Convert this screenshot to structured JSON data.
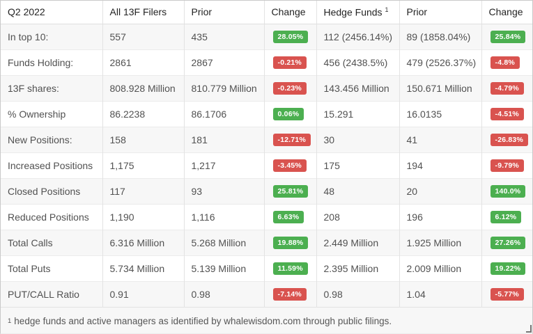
{
  "colors": {
    "positive": "#4caf50",
    "negative": "#d9534f",
    "stripe": "#f7f7f7",
    "border": "#e3e3e3"
  },
  "table": {
    "columns": [
      {
        "id": "label",
        "label": "Q2 2022",
        "type": "text"
      },
      {
        "id": "all",
        "label": "All 13F Filers",
        "type": "text"
      },
      {
        "id": "all_prior",
        "label": "Prior",
        "type": "text"
      },
      {
        "id": "all_chg",
        "label": "Change",
        "type": "badge"
      },
      {
        "id": "hf",
        "label": "Hedge Funds",
        "sup": "1",
        "type": "text"
      },
      {
        "id": "hf_prior",
        "label": "Prior",
        "type": "text"
      },
      {
        "id": "hf_chg",
        "label": "Change",
        "type": "badge"
      }
    ],
    "rows": [
      {
        "label": "In top 10:",
        "all": "557",
        "all_prior": "435",
        "all_chg": {
          "text": "28.05%",
          "positive": true
        },
        "hf": "112 (2456.14%)",
        "hf_prior": "89 (1858.04%)",
        "hf_chg": {
          "text": "25.84%",
          "positive": true
        }
      },
      {
        "label": "Funds Holding:",
        "all": "2861",
        "all_prior": "2867",
        "all_chg": {
          "text": "-0.21%",
          "positive": false
        },
        "hf": "456 (2438.5%)",
        "hf_prior": "479 (2526.37%)",
        "hf_chg": {
          "text": "-4.8%",
          "positive": false
        }
      },
      {
        "label": "13F shares:",
        "all": "808.928 Million",
        "all_prior": "810.779 Million",
        "all_chg": {
          "text": "-0.23%",
          "positive": false
        },
        "hf": "143.456 Million",
        "hf_prior": "150.671 Million",
        "hf_chg": {
          "text": "-4.79%",
          "positive": false
        }
      },
      {
        "label": "% Ownership",
        "all": "86.2238",
        "all_prior": "86.1706",
        "all_chg": {
          "text": "0.06%",
          "positive": true
        },
        "hf": "15.291",
        "hf_prior": "16.0135",
        "hf_chg": {
          "text": "-4.51%",
          "positive": false
        }
      },
      {
        "label": "New Positions:",
        "all": "158",
        "all_prior": "181",
        "all_chg": {
          "text": "-12.71%",
          "positive": false
        },
        "hf": "30",
        "hf_prior": "41",
        "hf_chg": {
          "text": "-26.83%",
          "positive": false
        }
      },
      {
        "label": "Increased Positions",
        "all": "1,175",
        "all_prior": "1,217",
        "all_chg": {
          "text": "-3.45%",
          "positive": false
        },
        "hf": "175",
        "hf_prior": "194",
        "hf_chg": {
          "text": "-9.79%",
          "positive": false
        }
      },
      {
        "label": "Closed Positions",
        "all": "117",
        "all_prior": "93",
        "all_chg": {
          "text": "25.81%",
          "positive": true
        },
        "hf": "48",
        "hf_prior": "20",
        "hf_chg": {
          "text": "140.0%",
          "positive": true
        }
      },
      {
        "label": "Reduced Positions",
        "all": "1,190",
        "all_prior": "1,116",
        "all_chg": {
          "text": "6.63%",
          "positive": true
        },
        "hf": "208",
        "hf_prior": "196",
        "hf_chg": {
          "text": "6.12%",
          "positive": true
        }
      },
      {
        "label": "Total Calls",
        "all": "6.316 Million",
        "all_prior": "5.268 Million",
        "all_chg": {
          "text": "19.88%",
          "positive": true
        },
        "hf": "2.449 Million",
        "hf_prior": "1.925 Million",
        "hf_chg": {
          "text": "27.26%",
          "positive": true
        }
      },
      {
        "label": "Total Puts",
        "all": "5.734 Million",
        "all_prior": "5.139 Million",
        "all_chg": {
          "text": "11.59%",
          "positive": true
        },
        "hf": "2.395 Million",
        "hf_prior": "2.009 Million",
        "hf_chg": {
          "text": "19.22%",
          "positive": true
        }
      },
      {
        "label": "PUT/CALL Ratio",
        "all": "0.91",
        "all_prior": "0.98",
        "all_chg": {
          "text": "-7.14%",
          "positive": false
        },
        "hf": "0.98",
        "hf_prior": "1.04",
        "hf_chg": {
          "text": "-5.77%",
          "positive": false
        }
      }
    ]
  },
  "footnote": {
    "marker": "1",
    "text": "hedge funds and active managers as identified by whalewisdom.com through public filings."
  }
}
